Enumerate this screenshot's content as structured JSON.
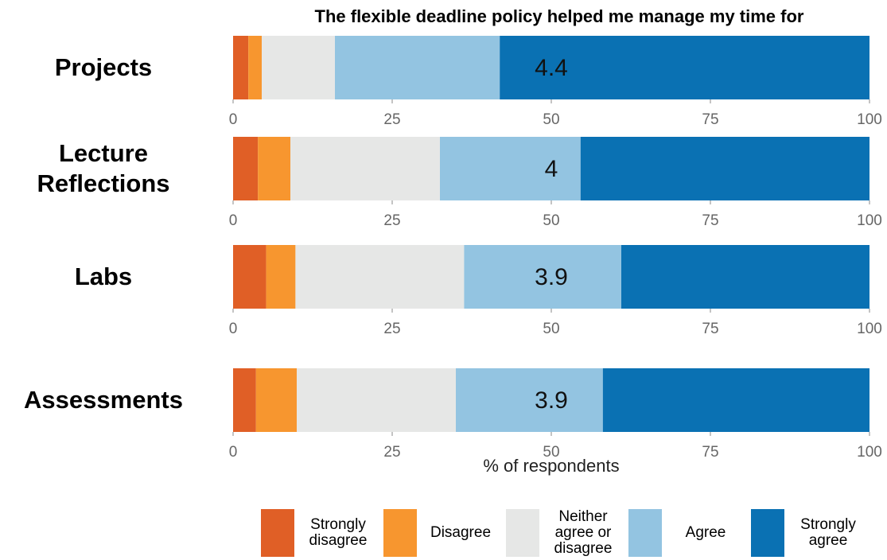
{
  "chart_data": {
    "type": "stacked-barh",
    "title": "The flexible deadline policy helped me manage my time for",
    "x_label": "% of respondents",
    "categories": [
      "Projects",
      "Lecture Reflections",
      "Labs",
      "Assessments"
    ],
    "means": [
      4.4,
      4,
      3.9,
      3.9
    ],
    "series": [
      {
        "name": "Strongly disagree",
        "color": "#e05f26",
        "values": [
          2.4,
          3.9,
          5.2,
          3.6
        ]
      },
      {
        "name": "Disagree",
        "color": "#f7962f",
        "values": [
          2.1,
          5.1,
          4.6,
          6.4
        ]
      },
      {
        "name": "Neither agree or disagree",
        "color": "#e6e7e6",
        "values": [
          11.5,
          23.5,
          26.5,
          25
        ]
      },
      {
        "name": "Agree",
        "color": "#93c4e1",
        "values": [
          25.9,
          22.1,
          24.7,
          23.1
        ]
      },
      {
        "name": "Strongly agree",
        "color": "#0a71b3",
        "values": [
          58.1,
          45.4,
          39.0,
          41.9
        ]
      }
    ],
    "xlim": [
      0,
      100
    ],
    "xticks": [
      0,
      25,
      50,
      75,
      100
    ]
  }
}
